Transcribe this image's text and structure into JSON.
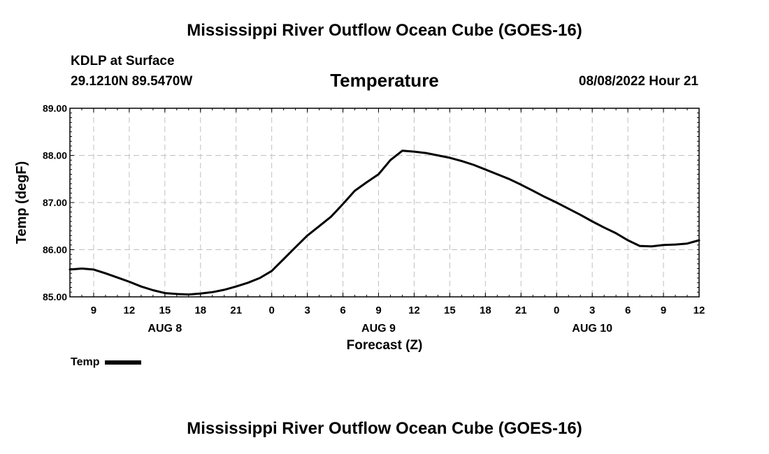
{
  "header": {
    "title": "Mississippi River Outflow Ocean Cube (GOES-16)",
    "station": "KDLP at Surface",
    "coords": "29.1210N  89.5470W",
    "variable": "Temperature",
    "datetime": "08/08/2022 Hour 21"
  },
  "footer": {
    "title": "Mississippi River Outflow Ocean Cube (GOES-16)"
  },
  "legend": {
    "label": "Temp"
  },
  "colors": {
    "line": "#000000",
    "grid": "#c0c0c0",
    "axis": "#000000"
  },
  "chart_data": {
    "type": "line",
    "title": "Temperature",
    "xlabel": "Forecast (Z)",
    "ylabel": "Temp (degF)",
    "x_unit": "hours since 2022-08-08 00Z",
    "xlim": [
      7,
      60
    ],
    "ylim": [
      85.0,
      89.0
    ],
    "grid": true,
    "legend": "bottom-left",
    "y_ticks": [
      85,
      86,
      87,
      88,
      89
    ],
    "y_tick_labels": [
      "85.00",
      "86.00",
      "87.00",
      "88.00",
      "89.00"
    ],
    "x_ticks": [
      9,
      12,
      15,
      18,
      21,
      24,
      27,
      30,
      33,
      36,
      39,
      42,
      45,
      48,
      51,
      54,
      57,
      60
    ],
    "x_tick_labels": [
      "9",
      "12",
      "15",
      "18",
      "21",
      "0",
      "3",
      "6",
      "9",
      "12",
      "15",
      "18",
      "21",
      "0",
      "3",
      "6",
      "9",
      "12"
    ],
    "date_labels": [
      {
        "x": 15,
        "label": "AUG 8"
      },
      {
        "x": 33,
        "label": "AUG 9"
      },
      {
        "x": 51,
        "label": "AUG 10"
      }
    ],
    "series": [
      {
        "name": "Temp",
        "x": [
          7,
          8,
          9,
          10,
          11,
          12,
          13,
          14,
          15,
          16,
          17,
          18,
          19,
          20,
          21,
          22,
          23,
          24,
          25,
          26,
          27,
          28,
          29,
          30,
          31,
          32,
          33,
          34,
          35,
          36,
          37,
          38,
          39,
          40,
          41,
          42,
          43,
          44,
          45,
          46,
          47,
          48,
          49,
          50,
          51,
          52,
          53,
          54,
          55,
          56,
          57,
          58,
          59,
          60
        ],
        "values": [
          85.58,
          85.6,
          85.58,
          85.5,
          85.41,
          85.32,
          85.22,
          85.14,
          85.08,
          85.06,
          85.05,
          85.07,
          85.1,
          85.15,
          85.22,
          85.3,
          85.4,
          85.55,
          85.8,
          86.05,
          86.3,
          86.5,
          86.7,
          86.97,
          87.25,
          87.43,
          87.6,
          87.9,
          88.1,
          88.08,
          88.05,
          88.0,
          87.95,
          87.88,
          87.8,
          87.7,
          87.6,
          87.5,
          87.38,
          87.25,
          87.12,
          87.0,
          86.87,
          86.74,
          86.6,
          86.47,
          86.35,
          86.2,
          86.08,
          86.07,
          86.1,
          86.11,
          86.13,
          86.2
        ]
      }
    ]
  }
}
